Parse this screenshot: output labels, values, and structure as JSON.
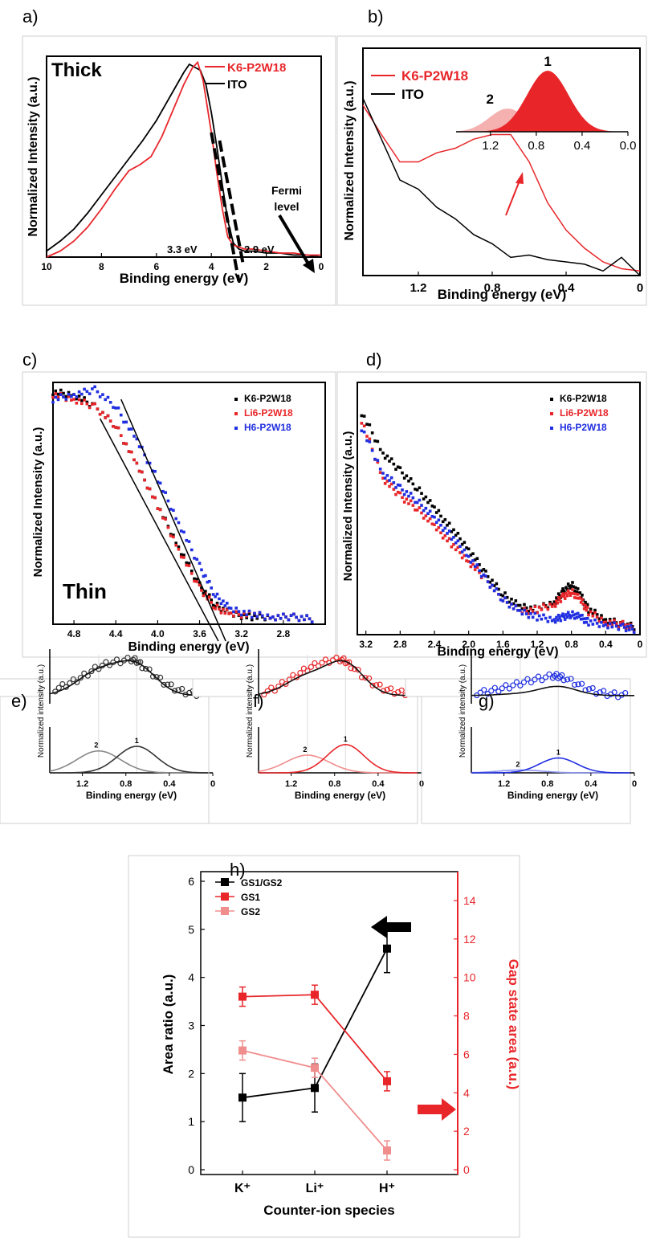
{
  "colors": {
    "black": "#000000",
    "red": "#e8262a",
    "blue": "#1f2ee0",
    "pink": "#f08d8d",
    "gray": "#888888",
    "light_red": "#f5b0b0"
  },
  "chart_data": [
    {
      "panel": "a)",
      "type": "line",
      "corner_label": "Thick",
      "xlabel": "Binding energy (eV)",
      "ylabel": "Normalized Intensity (a.u.)",
      "xlim": [
        10,
        0
      ],
      "xticks": [
        "10",
        "8",
        "6",
        "4",
        "2",
        "0"
      ],
      "legend": [
        {
          "name": "K6-P2W18",
          "color": "#e8262a"
        },
        {
          "name": "ITO",
          "color": "#000000"
        }
      ],
      "annotations": [
        "3.3 eV",
        "2.9 eV",
        "Fermi",
        "level"
      ],
      "series": [
        {
          "name": "ITO",
          "x": [
            10,
            9.5,
            9,
            8.5,
            8,
            7.5,
            7,
            6.5,
            6,
            5.5,
            5,
            4.8,
            4.4,
            4.2,
            4.0,
            3.8,
            3.6,
            3.4,
            3.2,
            3.0,
            2.8,
            2.5,
            2,
            1.5,
            1,
            0.5,
            0
          ],
          "y": [
            0.03,
            0.08,
            0.14,
            0.22,
            0.31,
            0.4,
            0.49,
            0.58,
            0.68,
            0.8,
            0.92,
            0.96,
            0.93,
            0.86,
            0.72,
            0.55,
            0.36,
            0.18,
            0.07,
            0.04,
            0.03,
            0.03,
            0.02,
            0.02,
            0.01,
            0.01,
            0.0
          ]
        },
        {
          "name": "K6-P2W18",
          "x": [
            10,
            9.5,
            9,
            8.5,
            8,
            7.5,
            7,
            6.6,
            6.2,
            5.8,
            5.4,
            5.0,
            4.7,
            4.5,
            4.3,
            4.0,
            3.8,
            3.6,
            3.4,
            3.2,
            3.0,
            2.8,
            2.5,
            2,
            1.5,
            1,
            0.5,
            0
          ],
          "y": [
            0.0,
            0.03,
            0.08,
            0.15,
            0.24,
            0.34,
            0.43,
            0.46,
            0.5,
            0.6,
            0.73,
            0.86,
            0.94,
            0.97,
            0.88,
            0.62,
            0.42,
            0.24,
            0.1,
            0.06,
            0.05,
            0.04,
            0.04,
            0.03,
            0.02,
            0.02,
            0.01,
            0.01
          ]
        }
      ]
    },
    {
      "panel": "b)",
      "type": "line",
      "xlabel": "Binding energy (eV)",
      "ylabel": "Normalized Intensity (a.u.)",
      "xlim": [
        1.5,
        0
      ],
      "xticks": [
        "1.2",
        "0.8",
        "0.4",
        "0"
      ],
      "legend": [
        {
          "name": "K6-P2W18",
          "color": "#e8262a"
        },
        {
          "name": "ITO",
          "color": "#000000"
        }
      ],
      "series": [
        {
          "name": "K6-P2W18",
          "x": [
            1.5,
            1.4,
            1.3,
            1.2,
            1.1,
            1.0,
            0.9,
            0.8,
            0.7,
            0.6,
            0.5,
            0.4,
            0.3,
            0.2,
            0.1,
            0.0
          ],
          "y": [
            0.75,
            0.62,
            0.5,
            0.5,
            0.54,
            0.56,
            0.6,
            0.62,
            0.62,
            0.5,
            0.32,
            0.2,
            0.12,
            0.06,
            0.03,
            0.02
          ]
        },
        {
          "name": "ITO",
          "x": [
            1.5,
            1.4,
            1.3,
            1.2,
            1.1,
            1.0,
            0.9,
            0.8,
            0.7,
            0.6,
            0.5,
            0.4,
            0.3,
            0.2,
            0.1,
            0.0
          ],
          "y": [
            0.78,
            0.6,
            0.42,
            0.38,
            0.3,
            0.25,
            0.18,
            0.14,
            0.08,
            0.09,
            0.07,
            0.06,
            0.05,
            0.02,
            0.08,
            0.0
          ]
        }
      ],
      "inset": {
        "xticks": [
          "1.2",
          "0.8",
          "0.4",
          "0.0"
        ],
        "xlim": [
          1.5,
          0
        ],
        "peaks": [
          {
            "label": "1",
            "center": 0.7,
            "height": 1.0,
            "width": 0.18,
            "color": "#e8262a"
          },
          {
            "label": "2",
            "center": 1.05,
            "height": 0.38,
            "width": 0.16,
            "color": "#f5b0b0"
          }
        ]
      }
    },
    {
      "panel": "c)",
      "type": "scatter",
      "corner_label": "Thin",
      "xlabel": "Binding energy (eV)",
      "ylabel": "Normalized Intensity (a.u.)",
      "xlim": [
        5.0,
        2.4
      ],
      "xticks": [
        "4.8",
        "4.4",
        "4.0",
        "3.6",
        "3.2",
        "2.8"
      ],
      "legend": [
        {
          "name": "K6-P2W18",
          "color": "#000000"
        },
        {
          "name": "Li6-P2W18",
          "color": "#e8262a"
        },
        {
          "name": "H6-P2W18",
          "color": "#1f2ee0"
        }
      ],
      "series": [
        {
          "name": "K6-P2W18",
          "x": [
            5.0,
            4.8,
            4.6,
            4.4,
            4.2,
            4.0,
            3.8,
            3.6,
            3.45,
            3.3,
            3.1,
            2.9,
            2.7,
            2.5
          ],
          "y": [
            0.96,
            0.95,
            0.9,
            0.82,
            0.66,
            0.49,
            0.32,
            0.16,
            0.08,
            0.04,
            0.03,
            0.03,
            0.03,
            0.02
          ]
        },
        {
          "name": "Li6-P2W18",
          "x": [
            5.0,
            4.8,
            4.6,
            4.4,
            4.2,
            4.0,
            3.8,
            3.6,
            3.45,
            3.3,
            3.1,
            2.9,
            2.7,
            2.5
          ],
          "y": [
            0.95,
            0.93,
            0.9,
            0.82,
            0.66,
            0.49,
            0.31,
            0.15,
            0.07,
            0.04,
            0.04,
            0.03,
            0.03,
            0.02
          ]
        },
        {
          "name": "H6-P2W18",
          "x": [
            5.0,
            4.8,
            4.6,
            4.4,
            4.2,
            4.0,
            3.8,
            3.6,
            3.45,
            3.3,
            3.1,
            2.9,
            2.7,
            2.5
          ],
          "y": [
            0.93,
            0.95,
            0.97,
            0.9,
            0.76,
            0.6,
            0.42,
            0.24,
            0.12,
            0.06,
            0.04,
            0.03,
            0.03,
            0.02
          ]
        }
      ],
      "fit_lines": [
        {
          "x": [
            4.55,
            3.42
          ],
          "y": [
            0.85,
            -0.07
          ]
        },
        {
          "x": [
            4.35,
            3.35
          ],
          "y": [
            0.93,
            -0.07
          ]
        }
      ]
    },
    {
      "panel": "d)",
      "type": "scatter",
      "xlabel": "Binding energy (eV)",
      "ylabel": "Normalized Intensity (a.u.)",
      "xlim": [
        3.3,
        0
      ],
      "xticks": [
        "3.2",
        "2.8",
        "2.4",
        "2.0",
        "1.6",
        "1.2",
        "0.8",
        "0.4",
        "0"
      ],
      "legend": [
        {
          "name": "K6-P2W18",
          "color": "#000000"
        },
        {
          "name": "Li6-P2W18",
          "color": "#e8262a"
        },
        {
          "name": "H6-P2W18",
          "color": "#1f2ee0"
        }
      ],
      "series": [
        {
          "name": "K6-P2W18",
          "x": [
            3.25,
            3.0,
            2.8,
            2.6,
            2.4,
            2.2,
            2.0,
            1.8,
            1.6,
            1.4,
            1.2,
            1.0,
            0.9,
            0.8,
            0.7,
            0.6,
            0.4,
            0.2,
            0.05
          ],
          "y": [
            0.88,
            0.72,
            0.65,
            0.58,
            0.5,
            0.42,
            0.34,
            0.24,
            0.16,
            0.11,
            0.1,
            0.13,
            0.17,
            0.2,
            0.16,
            0.1,
            0.06,
            0.04,
            0.03
          ]
        },
        {
          "name": "Li6-P2W18",
          "x": [
            3.25,
            3.0,
            2.8,
            2.6,
            2.4,
            2.2,
            2.0,
            1.8,
            1.6,
            1.4,
            1.2,
            1.0,
            0.9,
            0.8,
            0.7,
            0.6,
            0.4,
            0.2,
            0.05
          ],
          "y": [
            0.85,
            0.62,
            0.55,
            0.5,
            0.43,
            0.36,
            0.29,
            0.22,
            0.14,
            0.09,
            0.1,
            0.12,
            0.15,
            0.17,
            0.14,
            0.09,
            0.05,
            0.04,
            0.02
          ]
        },
        {
          "name": "H6-P2W18",
          "x": [
            3.25,
            3.0,
            2.8,
            2.6,
            2.4,
            2.2,
            2.0,
            1.8,
            1.6,
            1.4,
            1.2,
            1.0,
            0.9,
            0.8,
            0.7,
            0.6,
            0.4,
            0.2,
            0.05
          ],
          "y": [
            0.82,
            0.64,
            0.58,
            0.53,
            0.46,
            0.39,
            0.31,
            0.22,
            0.14,
            0.09,
            0.07,
            0.06,
            0.07,
            0.08,
            0.07,
            0.05,
            0.04,
            0.03,
            0.02
          ]
        }
      ]
    },
    {
      "panel": "e)",
      "type": "scatter",
      "color": "#333333",
      "light_color": "#888888",
      "xlabel": "Binding energy (eV)",
      "ylabel": "Normalized intensity (a.u.)",
      "xlim": [
        1.5,
        0
      ],
      "xticks": [
        "1.2",
        "0.8",
        "0.4",
        "0"
      ],
      "peak_labels": [
        "2",
        "1"
      ],
      "data": {
        "x": [
          1.45,
          1.35,
          1.25,
          1.15,
          1.05,
          0.95,
          0.85,
          0.75,
          0.7,
          0.65,
          0.55,
          0.45,
          0.35,
          0.25,
          0.15,
          0.05
        ],
        "y": [
          0.2,
          0.32,
          0.45,
          0.62,
          0.8,
          0.9,
          0.95,
          1.0,
          0.96,
          0.82,
          0.6,
          0.38,
          0.22,
          0.12,
          0.08,
          0.05
        ]
      },
      "fit_amp": 1.0,
      "components": [
        {
          "label": "2",
          "center": 1.05,
          "amp": 0.62,
          "width": 0.2
        },
        {
          "label": "1",
          "center": 0.7,
          "amp": 0.75,
          "width": 0.18
        }
      ]
    },
    {
      "panel": "f)",
      "type": "scatter",
      "color": "#e8262a",
      "light_color": "#f08d8d",
      "xlabel": "Binding energy (eV)",
      "ylabel": "Normalized intensity (a.u.)",
      "xlim": [
        1.5,
        0
      ],
      "xticks": [
        "1.2",
        "0.8",
        "0.4",
        "0"
      ],
      "peak_labels": [
        "2",
        "1"
      ],
      "data": {
        "x": [
          1.45,
          1.35,
          1.25,
          1.15,
          1.05,
          0.95,
          0.85,
          0.75,
          0.7,
          0.65,
          0.55,
          0.45,
          0.35,
          0.25,
          0.15,
          0.05
        ],
        "y": [
          0.12,
          0.22,
          0.4,
          0.58,
          0.75,
          0.88,
          0.96,
          1.0,
          0.95,
          0.82,
          0.58,
          0.36,
          0.22,
          0.14,
          0.1,
          0.06
        ]
      },
      "fit_amp": 1.0,
      "components": [
        {
          "label": "2",
          "center": 1.05,
          "amp": 0.5,
          "width": 0.2
        },
        {
          "label": "1",
          "center": 0.7,
          "amp": 0.8,
          "width": 0.17
        }
      ]
    },
    {
      "panel": "g)",
      "type": "scatter",
      "color": "#1f2ee0",
      "light_color": "#8a93ee",
      "xlabel": "Binding energy (eV)",
      "ylabel": "Normalized intensity (a.u.)",
      "xlim": [
        1.5,
        0
      ],
      "xticks": [
        "1.2",
        "0.8",
        "0.4",
        "0"
      ],
      "peak_labels": [
        "2",
        "1"
      ],
      "data": {
        "x": [
          1.45,
          1.35,
          1.25,
          1.15,
          1.05,
          0.95,
          0.85,
          0.75,
          0.7,
          0.65,
          0.55,
          0.45,
          0.35,
          0.25,
          0.15,
          0.05
        ],
        "y": [
          0.1,
          0.14,
          0.2,
          0.28,
          0.36,
          0.44,
          0.5,
          0.56,
          0.55,
          0.5,
          0.38,
          0.24,
          0.14,
          0.08,
          0.05,
          0.04
        ]
      },
      "fit_amp": 0.56,
      "components": [
        {
          "label": "2",
          "center": 1.05,
          "amp": 0.08,
          "width": 0.2
        },
        {
          "label": "1",
          "center": 0.7,
          "amp": 0.42,
          "width": 0.17
        }
      ]
    },
    {
      "panel": "h)",
      "type": "line",
      "xlabel": "Counter-ion species",
      "ylabel": "Area ratio (a.u.)",
      "ylabel_right": "Gap state area (a.u.)",
      "categories": [
        "K⁺",
        "Li⁺",
        "H⁺"
      ],
      "ylim": [
        0,
        6
      ],
      "ylim_right": [
        0,
        15
      ],
      "yticks": [
        "0",
        "1",
        "2",
        "3",
        "4",
        "5",
        "6"
      ],
      "yticks_right": [
        "0",
        "2",
        "4",
        "6",
        "8",
        "10",
        "12",
        "14"
      ],
      "legend": [
        {
          "name": "GS1/GS2",
          "color": "#000000"
        },
        {
          "name": "GS1",
          "color": "#e8262a"
        },
        {
          "name": "GS2",
          "color": "#f08d8d"
        }
      ],
      "series": [
        {
          "name": "GS1/GS2",
          "axis": "left",
          "values": [
            1.5,
            1.7,
            4.6
          ],
          "errors": [
            0.5,
            0.5,
            0.5
          ]
        },
        {
          "name": "GS1",
          "axis": "right",
          "values": [
            9.0,
            9.1,
            4.6
          ],
          "errors": [
            0.5,
            0.5,
            0.5
          ]
        },
        {
          "name": "GS2",
          "axis": "right",
          "values": [
            6.2,
            5.3,
            1.0
          ],
          "errors": [
            0.5,
            0.5,
            0.5
          ]
        }
      ]
    }
  ]
}
